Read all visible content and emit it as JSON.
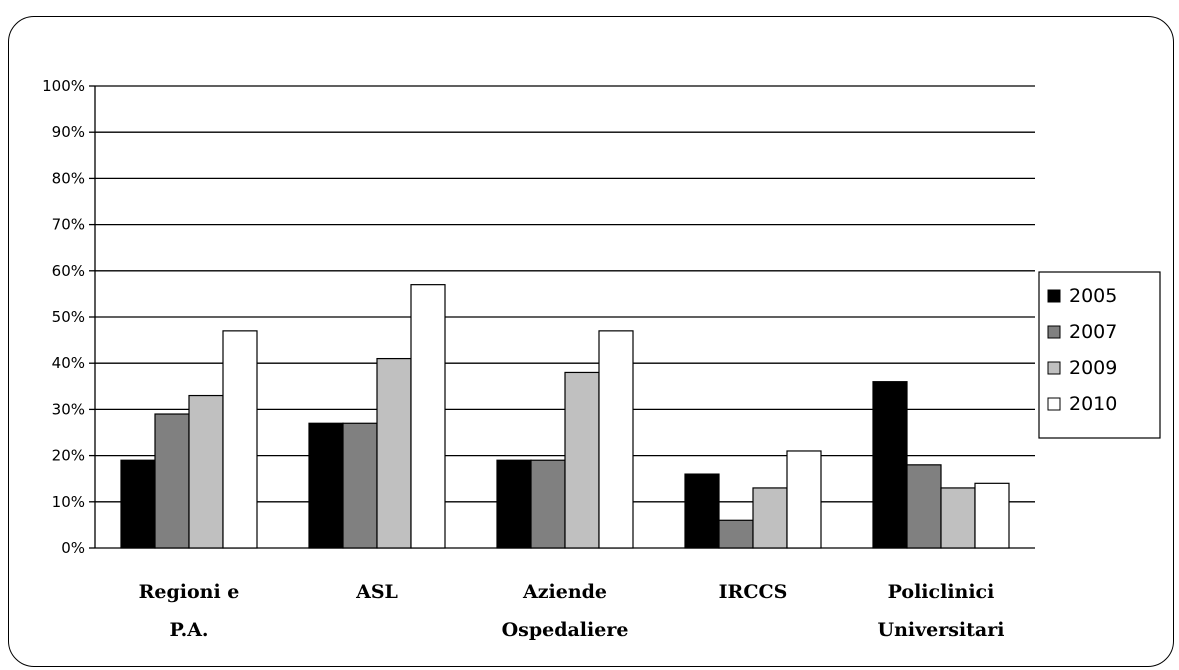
{
  "chart_data": {
    "type": "bar",
    "categories": [
      [
        "Regioni e",
        "P.A."
      ],
      [
        "ASL"
      ],
      [
        "Aziende",
        "Ospedaliere"
      ],
      [
        "IRCCS"
      ],
      [
        "Policlinici",
        "Universitari"
      ]
    ],
    "series": [
      {
        "name": "2005",
        "color": "#000000",
        "values": [
          19,
          27,
          19,
          16,
          36
        ]
      },
      {
        "name": "2007",
        "color": "#808080",
        "values": [
          29,
          27,
          19,
          6,
          18
        ]
      },
      {
        "name": "2009",
        "color": "#c0c0c0",
        "values": [
          33,
          41,
          38,
          13,
          13
        ]
      },
      {
        "name": "2010",
        "color": "#ffffff",
        "values": [
          47,
          57,
          47,
          21,
          14
        ]
      }
    ],
    "y_ticks": [
      "0%",
      "10%",
      "20%",
      "30%",
      "40%",
      "50%",
      "60%",
      "70%",
      "80%",
      "90%",
      "100%"
    ],
    "ylim": [
      0,
      100
    ],
    "grid": true,
    "legend_position": "right"
  }
}
